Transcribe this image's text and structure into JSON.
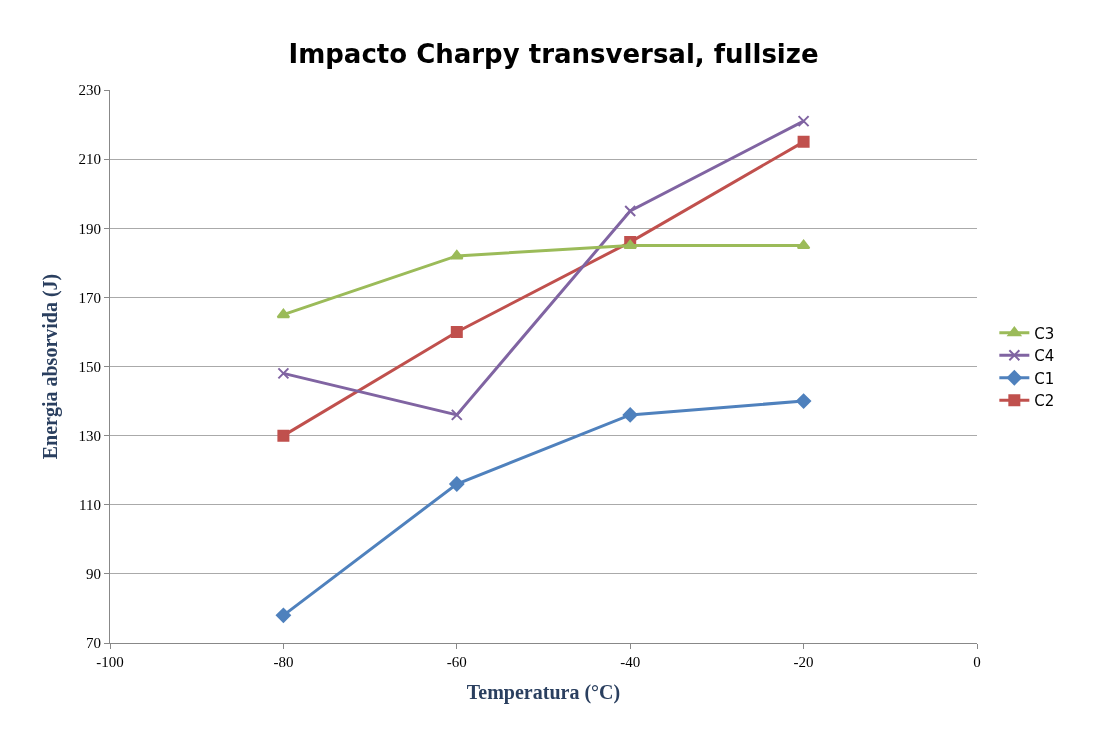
{
  "chart_data": {
    "type": "line",
    "title": "Impacto Charpy transversal, fullsize",
    "xlabel": "Temperatura (°C)",
    "ylabel": "Energia absorvida (J)",
    "x": [
      -80,
      -60,
      -40,
      -20
    ],
    "series": [
      {
        "name": "C3",
        "color": "#9bbb59",
        "marker": "triangle",
        "values": [
          165,
          182,
          185,
          185
        ]
      },
      {
        "name": "C4",
        "color": "#8064a2",
        "marker": "cross",
        "values": [
          148,
          136,
          195,
          221
        ]
      },
      {
        "name": "C1",
        "color": "#4f81bd",
        "marker": "diamond",
        "values": [
          78,
          116,
          136,
          140
        ]
      },
      {
        "name": "C2",
        "color": "#c0504d",
        "marker": "square",
        "values": [
          130,
          160,
          186,
          215
        ]
      }
    ],
    "xlim": [
      -100,
      0
    ],
    "xticks": [
      -100,
      -80,
      -60,
      -40,
      -20,
      0
    ],
    "ylim": [
      70,
      230
    ],
    "yticks": [
      70,
      90,
      110,
      130,
      150,
      170,
      190,
      210,
      230
    ],
    "grid": "y",
    "legend": "right"
  }
}
